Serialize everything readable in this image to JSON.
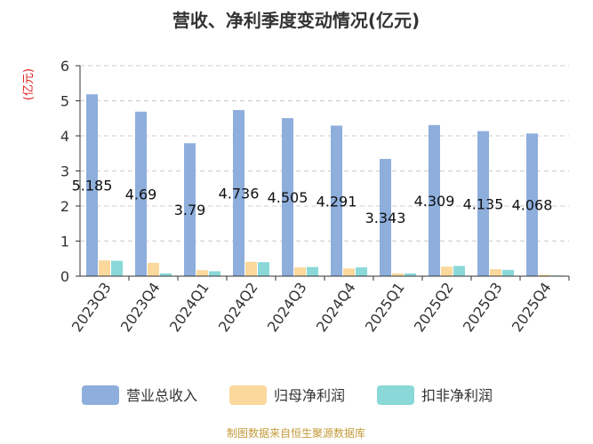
{
  "chart_data": {
    "type": "bar",
    "title": "营收、净利季度变动情况(亿元)",
    "ylabel": "(亿元)",
    "xlabel": "",
    "ylim": [
      0,
      6
    ],
    "yticks": [
      "0",
      "1",
      "2",
      "3",
      "4",
      "5",
      "6"
    ],
    "grid": true,
    "legend_position": "bottom",
    "categories": [
      "2023Q3",
      "2023Q4",
      "2024Q1",
      "2024Q2",
      "2024Q3",
      "2024Q4",
      "2025Q1",
      "2025Q2",
      "2025Q3",
      "2025Q4"
    ],
    "series": [
      {
        "name": "营业总收入",
        "color": "#8eaedc",
        "values": [
          5.185,
          4.69,
          3.79,
          4.736,
          4.505,
          4.291,
          3.343,
          4.309,
          4.135,
          4.068
        ],
        "labels": [
          "5.185",
          "4.69",
          "3.79",
          "4.736",
          "4.505",
          "4.291",
          "3.343",
          "4.309",
          "4.135",
          "4.068"
        ]
      },
      {
        "name": "归母净利润",
        "color": "#fbd89c",
        "values": [
          0.45,
          0.38,
          0.17,
          0.41,
          0.25,
          0.22,
          0.08,
          0.27,
          0.2,
          0.04
        ]
      },
      {
        "name": "扣非净利润",
        "color": "#8ad8d8",
        "values": [
          0.44,
          0.08,
          0.14,
          0.4,
          0.26,
          0.25,
          0.08,
          0.29,
          0.18,
          0.02
        ]
      }
    ],
    "footer": "制图数据来自恒生聚源数据库",
    "colors": {
      "title": "#333333",
      "ylabel": "#e02020",
      "axis": "#333333",
      "grid": "#cccccc",
      "footer": "#c49a3a"
    }
  }
}
